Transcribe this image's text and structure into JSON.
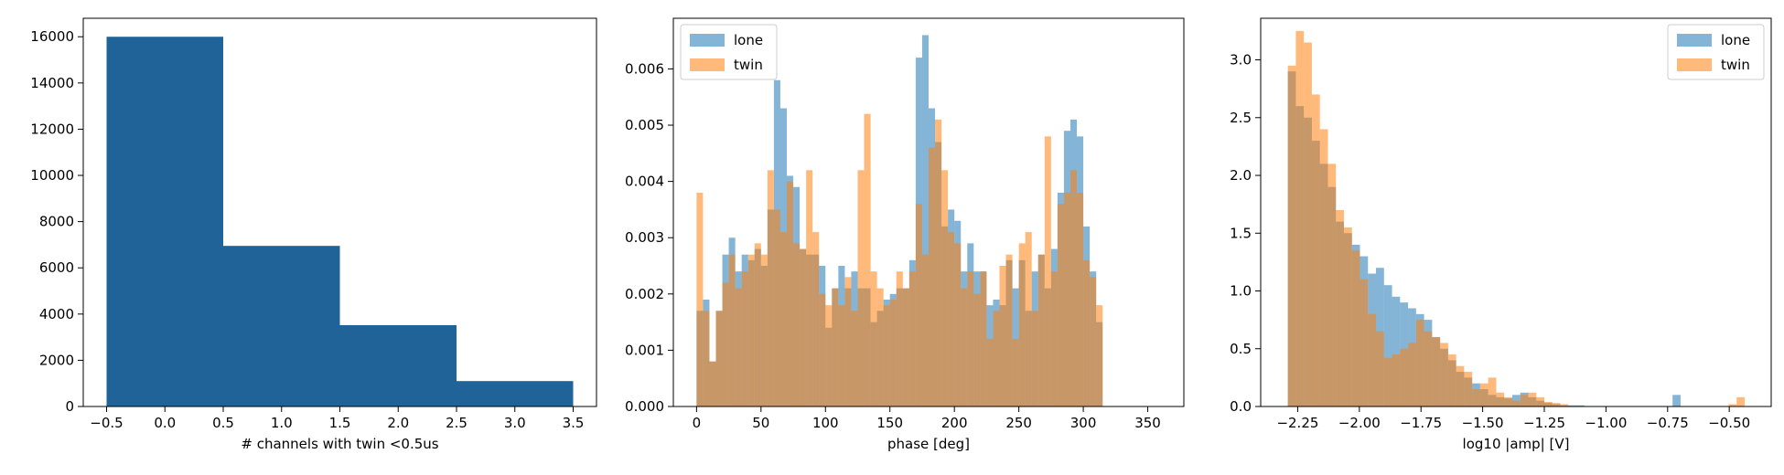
{
  "chart_data": [
    {
      "type": "bar",
      "xlabel": "# channels with twin <0.5us",
      "ylabel": "",
      "xlim": [
        -0.7,
        3.7
      ],
      "ylim": [
        0,
        16800
      ],
      "xticks": [
        -0.5,
        0.0,
        0.5,
        1.0,
        1.5,
        2.0,
        2.5,
        3.0,
        3.5
      ],
      "xtick_labels": [
        "−0.5",
        "0.0",
        "0.5",
        "1.0",
        "1.5",
        "2.0",
        "2.5",
        "3.0",
        "3.5"
      ],
      "yticks": [
        0,
        2000,
        4000,
        6000,
        8000,
        10000,
        12000,
        14000,
        16000
      ],
      "ytick_labels": [
        "0",
        "2000",
        "4000",
        "6000",
        "8000",
        "10000",
        "12000",
        "14000",
        "16000"
      ],
      "bins": [
        [
          -0.5,
          0.5
        ],
        [
          0.5,
          1.5
        ],
        [
          1.5,
          2.5
        ],
        [
          2.5,
          3.5
        ]
      ],
      "values": [
        16000,
        6950,
        3520,
        1100
      ],
      "color": "#1f6399",
      "grid": false
    },
    {
      "type": "histogram",
      "xlabel": "phase [deg]",
      "ylabel": "",
      "xlim": [
        -18,
        378
      ],
      "ylim": [
        0,
        0.0069
      ],
      "xticks": [
        0,
        50,
        100,
        150,
        200,
        250,
        300,
        350
      ],
      "xtick_labels": [
        "0",
        "50",
        "100",
        "150",
        "200",
        "250",
        "300",
        "350"
      ],
      "yticks": [
        0,
        0.001,
        0.002,
        0.003,
        0.004,
        0.005,
        0.006
      ],
      "ytick_labels": [
        "0.000",
        "0.001",
        "0.002",
        "0.003",
        "0.004",
        "0.005",
        "0.006"
      ],
      "bin_start": 0,
      "bin_width": 5,
      "legend_position": "top-left",
      "series": [
        {
          "name": "lone",
          "color": "#1f77b4",
          "opacity": 0.55,
          "values": [
            0.0017,
            0.0019,
            0.0008,
            0.0017,
            0.0027,
            0.003,
            0.0024,
            0.0027,
            0.0026,
            0.0028,
            0.0025,
            0.0035,
            0.0058,
            0.0053,
            0.0041,
            0.0039,
            0.0028,
            0.0027,
            0.0027,
            0.0025,
            0.0014,
            0.0021,
            0.0025,
            0.0021,
            0.0024,
            0.0021,
            0.0021,
            0.0015,
            0.0017,
            0.0019,
            0.002,
            0.0021,
            0.0021,
            0.0026,
            0.0062,
            0.0066,
            0.0053,
            0.0047,
            0.0032,
            0.0035,
            0.0033,
            0.0024,
            0.0029,
            0.0024,
            0.0024,
            0.0018,
            0.0019,
            0.0018,
            0.0026,
            0.0021,
            0.0026,
            0.0017,
            0.0024,
            0.0027,
            0.0021,
            0.0028,
            0.0038,
            0.0049,
            0.0051,
            0.0048,
            0.0032,
            0.0024,
            0.0015
          ]
        },
        {
          "name": "twin",
          "color": "#ff7f0e",
          "opacity": 0.55,
          "values": [
            0.0038,
            0.0017,
            0.0008,
            0.0017,
            0.0022,
            0.0027,
            0.0021,
            0.0024,
            0.0027,
            0.0029,
            0.0027,
            0.0042,
            0.0035,
            0.0031,
            0.004,
            0.0029,
            0.0028,
            0.0042,
            0.0031,
            0.002,
            0.0018,
            0.0021,
            0.0018,
            0.0023,
            0.0017,
            0.0042,
            0.0052,
            0.0024,
            0.0021,
            0.0018,
            0.0019,
            0.0024,
            0.0021,
            0.0024,
            0.0036,
            0.0027,
            0.0046,
            0.0051,
            0.0042,
            0.0031,
            0.0029,
            0.0021,
            0.0024,
            0.002,
            0.0024,
            0.0012,
            0.0017,
            0.0025,
            0.0027,
            0.0012,
            0.0029,
            0.0031,
            0.0017,
            0.0027,
            0.0048,
            0.0024,
            0.0036,
            0.0038,
            0.0042,
            0.0038,
            0.0026,
            0.0023,
            0.0018
          ]
        }
      ],
      "grid": false
    },
    {
      "type": "histogram",
      "xlabel": "log10 |amp| [V]",
      "ylabel": "",
      "xlim": [
        -2.4,
        -0.33
      ],
      "ylim": [
        0,
        3.36
      ],
      "xticks": [
        -2.25,
        -2.0,
        -1.75,
        -1.5,
        -1.25,
        -1.0,
        -0.75,
        -0.5
      ],
      "xtick_labels": [
        "−2.25",
        "−2.00",
        "−1.75",
        "−1.50",
        "−1.25",
        "−1.00",
        "−0.75",
        "−0.50"
      ],
      "yticks": [
        0,
        0.5,
        1.0,
        1.5,
        2.0,
        2.5,
        3.0
      ],
      "ytick_labels": [
        "0.0",
        "0.5",
        "1.0",
        "1.5",
        "2.0",
        "2.5",
        "3.0"
      ],
      "bin_start": -2.29,
      "bin_width": 0.0325,
      "legend_position": "top-right",
      "series": [
        {
          "name": "lone",
          "color": "#1f77b4",
          "opacity": 0.55,
          "values": [
            2.9,
            2.6,
            2.5,
            2.3,
            2.1,
            1.9,
            1.6,
            1.5,
            1.4,
            1.3,
            1.15,
            1.2,
            1.05,
            0.95,
            0.9,
            0.85,
            0.8,
            0.75,
            0.6,
            0.5,
            0.4,
            0.3,
            0.25,
            0.2,
            0.15,
            0.1,
            0.08,
            0.07,
            0.1,
            0.12,
            0.08,
            0.05,
            0.03,
            0.02,
            0.01,
            0.01,
            0.01,
            0.0,
            0.0,
            0.0,
            0.0,
            0.0,
            0.0,
            0.0,
            0.0,
            0.0,
            0.0,
            0.0,
            0.1,
            0.0,
            0.0,
            0.0,
            0.0,
            0.0,
            0.0,
            0.0,
            0.0
          ]
        },
        {
          "name": "twin",
          "color": "#ff7f0e",
          "opacity": 0.55,
          "values": [
            2.95,
            3.25,
            3.15,
            2.7,
            2.4,
            2.1,
            1.7,
            1.55,
            1.35,
            1.1,
            0.8,
            0.65,
            0.42,
            0.45,
            0.5,
            0.55,
            0.75,
            0.65,
            0.6,
            0.55,
            0.45,
            0.35,
            0.3,
            0.15,
            0.2,
            0.25,
            0.12,
            0.08,
            0.05,
            0.1,
            0.12,
            0.08,
            0.04,
            0.03,
            0.02,
            0.0,
            0.0,
            0.0,
            0.0,
            0.0,
            0.0,
            0.0,
            0.0,
            0.0,
            0.0,
            0.0,
            0.0,
            0.0,
            0.0,
            0.0,
            0.0,
            0.0,
            0.0,
            0.0,
            0.0,
            0.02,
            0.08
          ]
        }
      ],
      "grid": false
    }
  ]
}
